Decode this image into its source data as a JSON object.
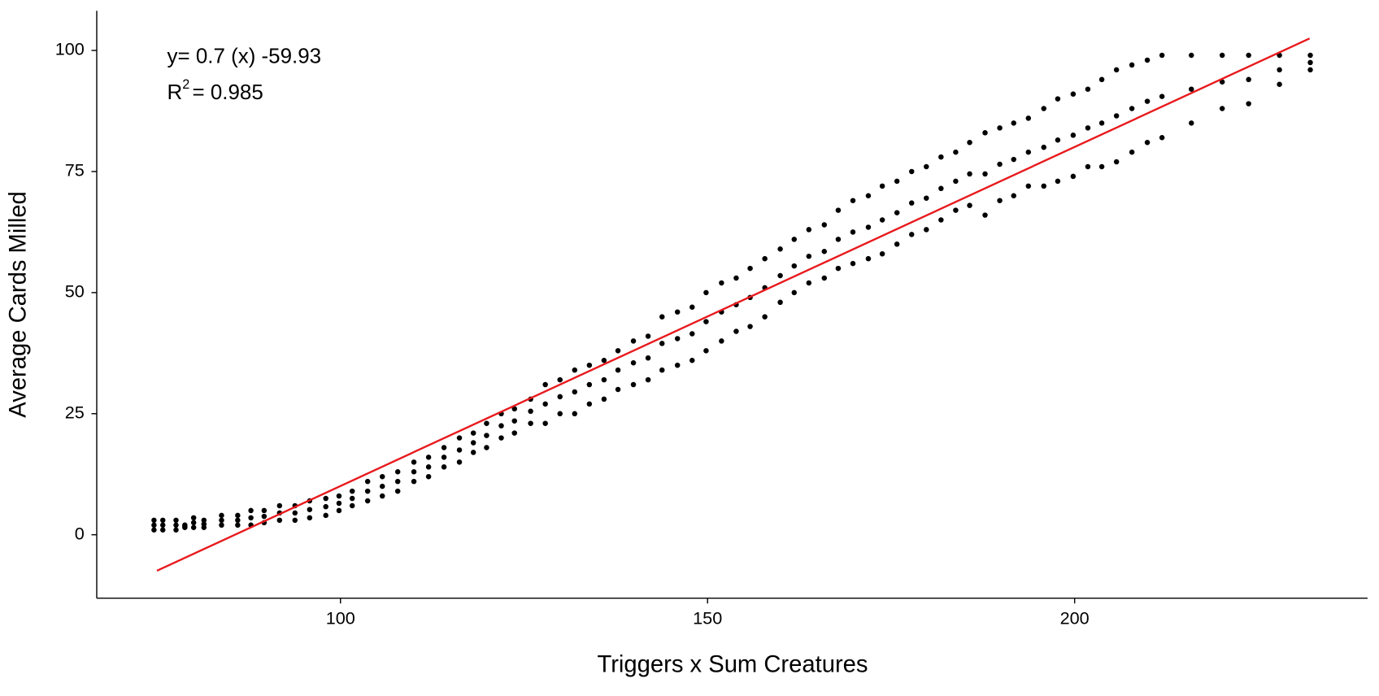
{
  "chart_data": {
    "type": "scatter",
    "x_label": "Triggers x Sum Creatures",
    "y_label": "Average Cards Milled",
    "equation": "y= 0.7 (x) -59.93",
    "r_squared_base": "R",
    "r_squared_sup": "2",
    "r_squared_value": "= 0.985",
    "xlim": [
      66.8,
      239.9
    ],
    "ylim": [
      -13.1,
      108.2
    ],
    "xticks": [
      100,
      150,
      200
    ],
    "yticks": [
      0,
      25,
      50,
      75,
      100
    ],
    "grid": false,
    "series": [
      {
        "name": null,
        "color": "#000000",
        "x": [
          74.6,
          74.6,
          74.6,
          75.8,
          75.8,
          75.8,
          77.6,
          77.6,
          77.6,
          78.8,
          78.8,
          78.8,
          80,
          80,
          80,
          81.4,
          81.4,
          81.4,
          83.8,
          83.8,
          83.8,
          86,
          86,
          86,
          87.8,
          87.8,
          87.8,
          89.6,
          89.6,
          89.6,
          91.7,
          91.7,
          91.7,
          93.8,
          93.8,
          93.8,
          95.8,
          95.8,
          95.8,
          98,
          98,
          98,
          99.8,
          99.8,
          99.8,
          101.6,
          101.6,
          101.6,
          103.7,
          103.7,
          103.7,
          105.7,
          105.7,
          105.7,
          107.8,
          107.8,
          107.8,
          110,
          110,
          110,
          112,
          112,
          112,
          114.1,
          114.1,
          114.1,
          116.2,
          116.2,
          116.2,
          118.1,
          118.1,
          118.1,
          119.9,
          119.9,
          119.9,
          121.9,
          121.9,
          121.9,
          123.7,
          123.7,
          123.7,
          125.9,
          125.9,
          125.9,
          127.9,
          127.9,
          127.9,
          129.9,
          129.9,
          129.9,
          131.9,
          131.9,
          131.9,
          133.9,
          133.9,
          133.9,
          135.9,
          135.9,
          135.9,
          137.8,
          137.8,
          137.8,
          139.9,
          139.9,
          139.9,
          141.9,
          141.9,
          141.9,
          143.8,
          143.8,
          143.8,
          145.9,
          145.9,
          145.9,
          147.9,
          147.9,
          147.9,
          149.8,
          149.8,
          149.8,
          151.9,
          151.9,
          151.9,
          153.9,
          153.9,
          153.9,
          155.8,
          155.8,
          155.8,
          157.8,
          157.8,
          157.8,
          159.9,
          159.9,
          159.9,
          161.8,
          161.8,
          161.8,
          163.8,
          163.8,
          163.8,
          165.9,
          165.9,
          165.9,
          167.8,
          167.8,
          167.8,
          169.8,
          169.8,
          169.8,
          171.9,
          171.9,
          171.9,
          173.8,
          173.8,
          173.8,
          175.8,
          175.8,
          175.8,
          177.8,
          177.8,
          177.8,
          179.8,
          179.8,
          179.8,
          181.8,
          181.8,
          181.8,
          183.8,
          183.8,
          183.8,
          185.7,
          185.7,
          185.7,
          187.8,
          187.8,
          187.8,
          189.8,
          189.8,
          189.8,
          191.7,
          191.7,
          191.7,
          193.7,
          193.7,
          193.7,
          195.8,
          195.8,
          195.8,
          197.7,
          197.7,
          197.7,
          199.8,
          199.8,
          199.8,
          201.8,
          201.8,
          201.8,
          203.7,
          203.7,
          203.7,
          205.7,
          205.7,
          205.7,
          207.8,
          207.8,
          207.8,
          209.9,
          209.9,
          209.9,
          211.9,
          211.9,
          211.9,
          215.9,
          215.9,
          215.9,
          220.1,
          220.1,
          220.1,
          223.7,
          223.7,
          223.7,
          227.9,
          227.9,
          227.9,
          232.1,
          232.1,
          232.1
        ],
        "y": [
          1,
          2,
          3,
          1,
          2,
          3,
          1,
          2,
          3,
          1.5,
          1.8,
          2,
          1.5,
          2.5,
          3.5,
          1.5,
          2.2,
          3,
          2,
          3,
          4,
          2,
          3,
          4,
          2,
          3.5,
          5,
          2.5,
          3.8,
          5,
          3,
          4.5,
          6,
          3,
          4.5,
          6,
          3.5,
          5.2,
          7,
          4,
          5.8,
          7.5,
          5,
          6.5,
          8,
          6,
          7.5,
          9,
          7,
          9,
          11,
          8,
          10,
          12,
          9,
          11,
          13,
          11,
          13,
          15,
          12,
          14,
          16,
          14,
          16,
          18,
          15,
          17.5,
          20,
          17,
          19,
          21,
          18,
          20.5,
          23,
          20,
          22.5,
          25,
          21,
          23.5,
          26,
          23,
          25.5,
          28,
          23,
          27,
          31,
          25,
          28.5,
          32,
          25,
          29.5,
          34,
          27,
          31,
          35,
          28,
          32,
          36,
          30,
          34,
          38,
          31,
          35.5,
          40,
          32,
          36.5,
          41,
          34,
          39.5,
          45,
          35,
          40.5,
          46,
          36,
          41.5,
          47,
          38,
          44,
          50,
          40,
          46,
          52,
          42,
          47.5,
          53,
          43,
          49,
          55,
          45,
          51,
          57,
          48,
          53.5,
          59,
          50,
          55.5,
          61,
          52,
          57.5,
          63,
          53,
          58.5,
          64,
          55,
          61,
          67,
          56,
          62.5,
          69,
          57,
          63.5,
          70,
          58,
          65,
          72,
          60,
          66.5,
          73,
          62,
          68.5,
          75,
          63,
          69.5,
          76,
          65,
          71.5,
          78,
          67,
          73,
          79,
          68,
          74.5,
          81,
          66,
          74.5,
          83,
          69,
          76.5,
          84,
          70,
          77.5,
          85,
          72,
          79,
          86,
          72,
          80,
          88,
          73,
          81.5,
          90,
          74,
          82.5,
          91,
          76,
          84,
          92,
          76,
          85,
          94,
          77,
          86.5,
          96,
          79,
          88,
          97,
          81,
          89.5,
          98,
          82,
          90.5,
          99,
          85,
          92,
          99,
          88,
          93.5,
          99,
          89,
          94,
          99,
          93,
          96,
          99,
          96,
          97.5,
          99
        ]
      }
    ],
    "fit": {
      "color": "#e8191c",
      "x": [
        75,
        232
      ],
      "y": [
        -7.43,
        102.47
      ]
    }
  }
}
